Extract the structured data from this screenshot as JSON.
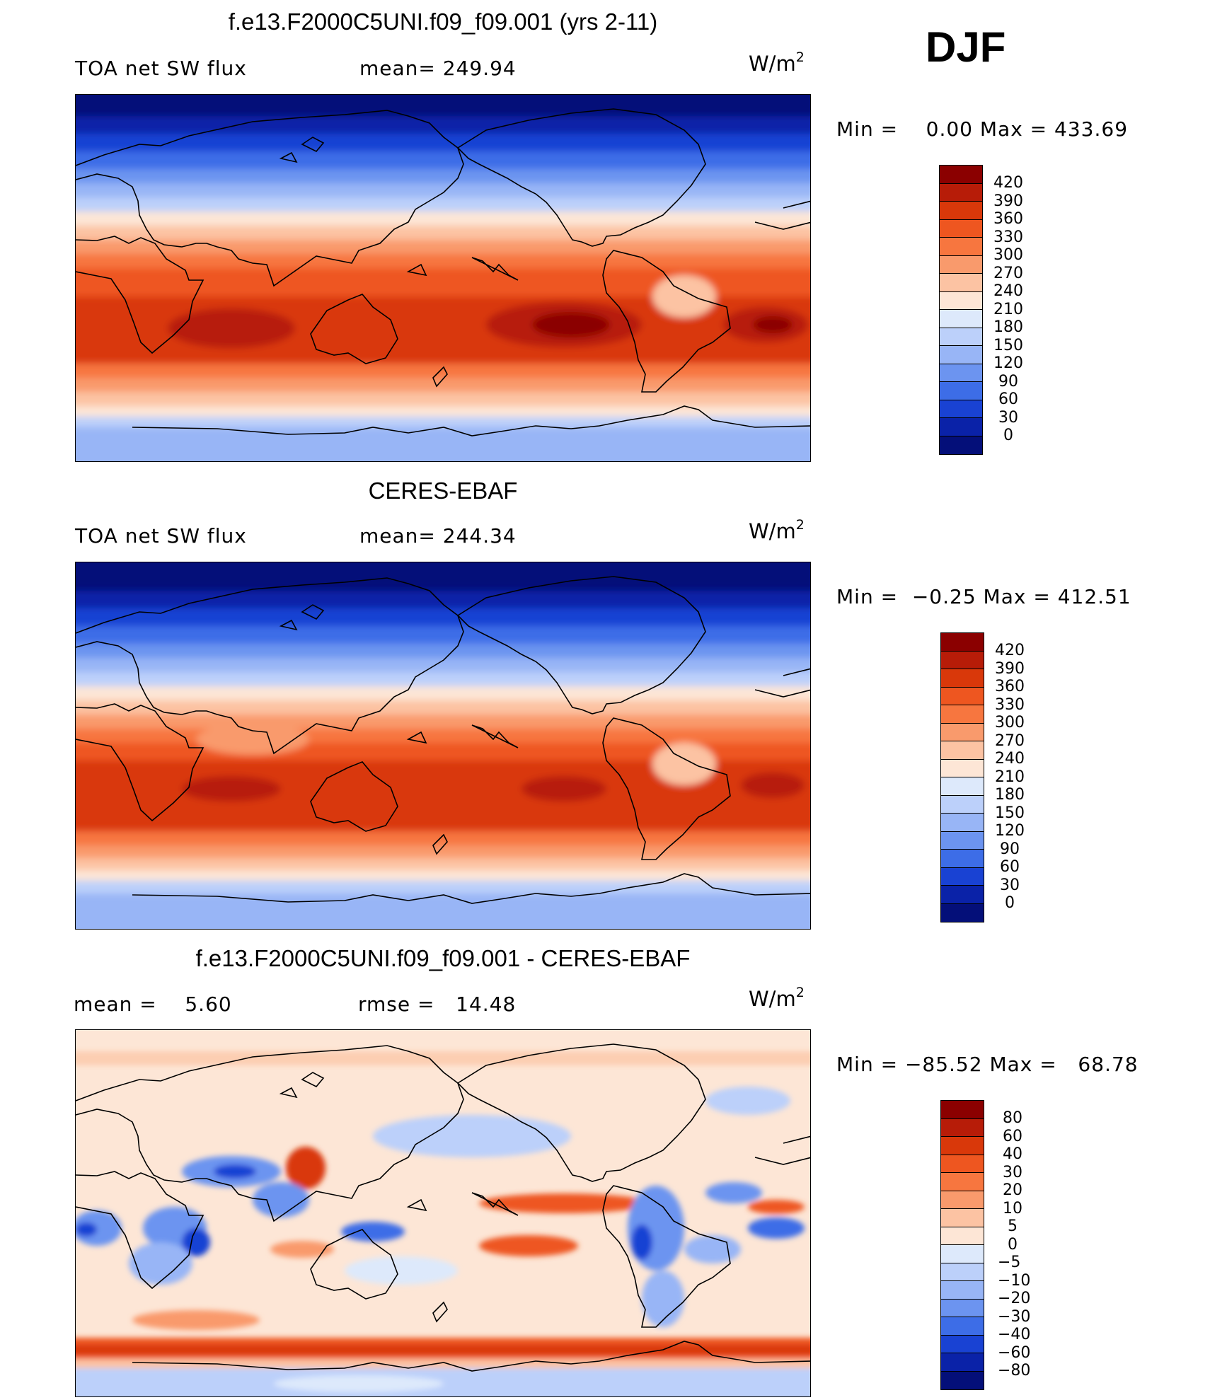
{
  "season": "DJF",
  "units_base": "W/m",
  "units_sup": "2",
  "panels": [
    {
      "title": "f.e13.F2000C5UNI.f09_f09.001 (yrs 2-11)",
      "left_label": "TOA net SW flux",
      "center_label": "mean= 249.94",
      "minmax": "Min =    0.00 Max = 433.69",
      "colorbar_labels": [
        "420",
        "390",
        "360",
        "330",
        "300",
        "270",
        "240",
        "210",
        "180",
        "150",
        "120",
        "90",
        "60",
        "30",
        "0"
      ]
    },
    {
      "title": "CERES-EBAF",
      "left_label": "TOA net SW flux",
      "center_label": "mean= 244.34",
      "minmax": "Min =  −0.25 Max = 412.51",
      "colorbar_labels": [
        "420",
        "390",
        "360",
        "330",
        "300",
        "270",
        "240",
        "210",
        "180",
        "150",
        "120",
        "90",
        "60",
        "30",
        "0"
      ]
    },
    {
      "title": "f.e13.F2000C5UNI.f09_f09.001 - CERES-EBAF",
      "left_label": "mean =    5.60",
      "center_label": "rmse =   14.48",
      "minmax": "Min = −85.52 Max =   68.78",
      "colorbar_labels": [
        "80",
        "60",
        "40",
        "30",
        "20",
        "10",
        "5",
        "0",
        "−5",
        "−10",
        "−20",
        "−30",
        "−40",
        "−60",
        "−80"
      ]
    }
  ],
  "colors": {
    "abs_scale": [
      "#8b0000",
      "#b71c08",
      "#d9380a",
      "#ee5620",
      "#f7763f",
      "#f99a6c",
      "#fcc3a3",
      "#fde6d6",
      "#dde9fb",
      "#bcd0fa",
      "#98b5f6",
      "#6c94f0",
      "#3d6de7",
      "#1942d3",
      "#0a22a8",
      "#040f79"
    ],
    "diff_scale": [
      "#8b0000",
      "#b71c08",
      "#d9380a",
      "#ee5620",
      "#f7763f",
      "#f99a6c",
      "#fcc3a3",
      "#fde6d6",
      "#dde9fb",
      "#bcd0fa",
      "#98b5f6",
      "#6c94f0",
      "#3d6de7",
      "#1942d3",
      "#0a22a8",
      "#040f79"
    ]
  }
}
